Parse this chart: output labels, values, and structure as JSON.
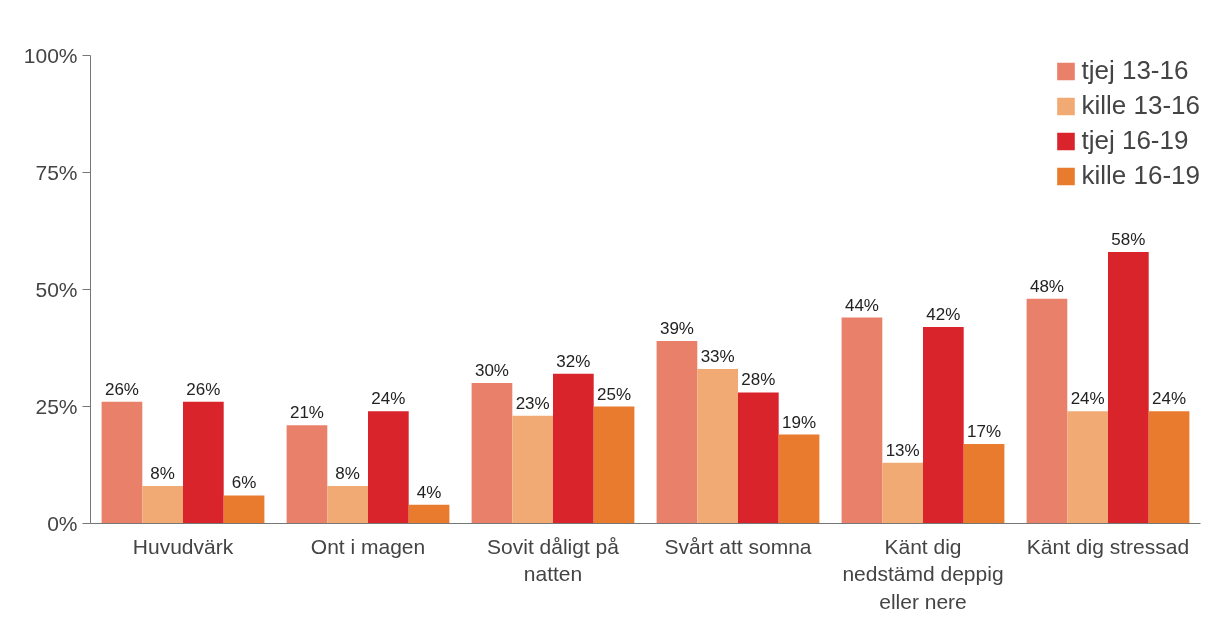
{
  "chart_data": {
    "type": "bar",
    "categories": [
      "Huvudvärk",
      "Ont i magen",
      "Sovit dåligt på\nnatten",
      "Svårt att somna",
      "Känt dig\nnedstämd deppig\neller nere",
      "Känt dig stressad"
    ],
    "series": [
      {
        "name": "tjej 13-16",
        "color": "#e8806a",
        "values": [
          26,
          21,
          30,
          39,
          44,
          48
        ],
        "value_labels": [
          "26%",
          "21%",
          "30%",
          "39%",
          "44%",
          "48%"
        ]
      },
      {
        "name": "kille 13-16",
        "color": "#f2aa74",
        "values": [
          8,
          8,
          23,
          33,
          13,
          24
        ],
        "value_labels": [
          "8%",
          "8%",
          "23%",
          "33%",
          "13%",
          "24%"
        ]
      },
      {
        "name": "tjej 16-19",
        "color": "#d9242c",
        "values": [
          26,
          24,
          32,
          28,
          42,
          58
        ],
        "value_labels": [
          "26%",
          "24%",
          "32%",
          "28%",
          "42%",
          "58%"
        ]
      },
      {
        "name": "kille 16-19",
        "color": "#e87b2e",
        "values": [
          6,
          4,
          25,
          19,
          17,
          24
        ],
        "value_labels": [
          "6%",
          "4%",
          "25%",
          "19%",
          "17%",
          "24%"
        ]
      }
    ],
    "ylim": [
      0,
      100
    ],
    "yticks": [
      {
        "value": 0,
        "label": "0%"
      },
      {
        "value": 25,
        "label": "25%"
      },
      {
        "value": 50,
        "label": "50%"
      },
      {
        "value": 75,
        "label": "75%"
      },
      {
        "value": 100,
        "label": "100%"
      }
    ],
    "grid": false,
    "legend": "top right"
  }
}
